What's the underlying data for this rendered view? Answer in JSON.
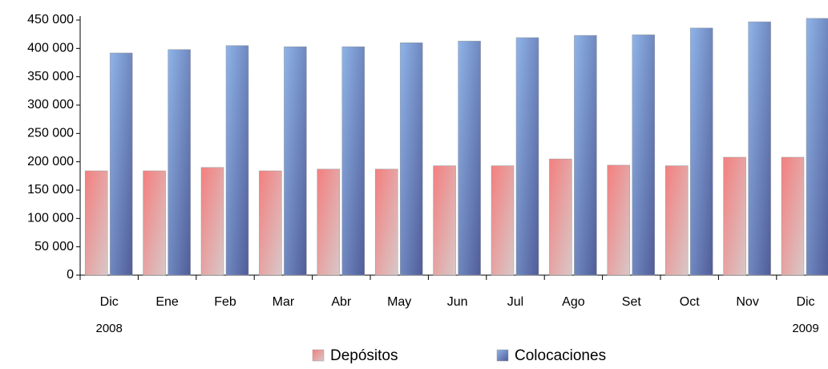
{
  "chart_data": {
    "type": "bar",
    "categories": [
      "Dic",
      "Ene",
      "Feb",
      "Mar",
      "Abr",
      "May",
      "Jun",
      "Jul",
      "Ago",
      "Set",
      "Oct",
      "Nov",
      "Dic"
    ],
    "category_sublabels": [
      "2008",
      null,
      null,
      null,
      null,
      null,
      null,
      null,
      null,
      null,
      null,
      null,
      "2009"
    ],
    "series": [
      {
        "name": "Depósitos",
        "color": "#f47f7f",
        "values": [
          184000,
          184000,
          190000,
          184000,
          187000,
          187000,
          193000,
          193000,
          205000,
          194000,
          193000,
          208000,
          208000
        ]
      },
      {
        "name": "Colocaciones",
        "color": "#8fb4e8",
        "values": [
          392000,
          398000,
          405000,
          403000,
          403000,
          410000,
          413000,
          419000,
          423000,
          424000,
          436000,
          447000,
          453000
        ]
      }
    ],
    "ylim": [
      0,
      450000
    ],
    "yticks": [
      0,
      {
        "value": 50000,
        "label": "50 000"
      },
      {
        "value": 100000,
        "label": "100 000"
      },
      {
        "value": 150000,
        "label": "150 000"
      },
      {
        "value": 200000,
        "label": "200 000"
      },
      {
        "value": 250000,
        "label": "250 000"
      },
      {
        "value": 300000,
        "label": "300 000"
      },
      {
        "value": 350000,
        "label": "350 000"
      },
      {
        "value": 400000,
        "label": "400 000"
      },
      {
        "value": 450000,
        "label": "450 000"
      }
    ],
    "legend": "bottom"
  }
}
